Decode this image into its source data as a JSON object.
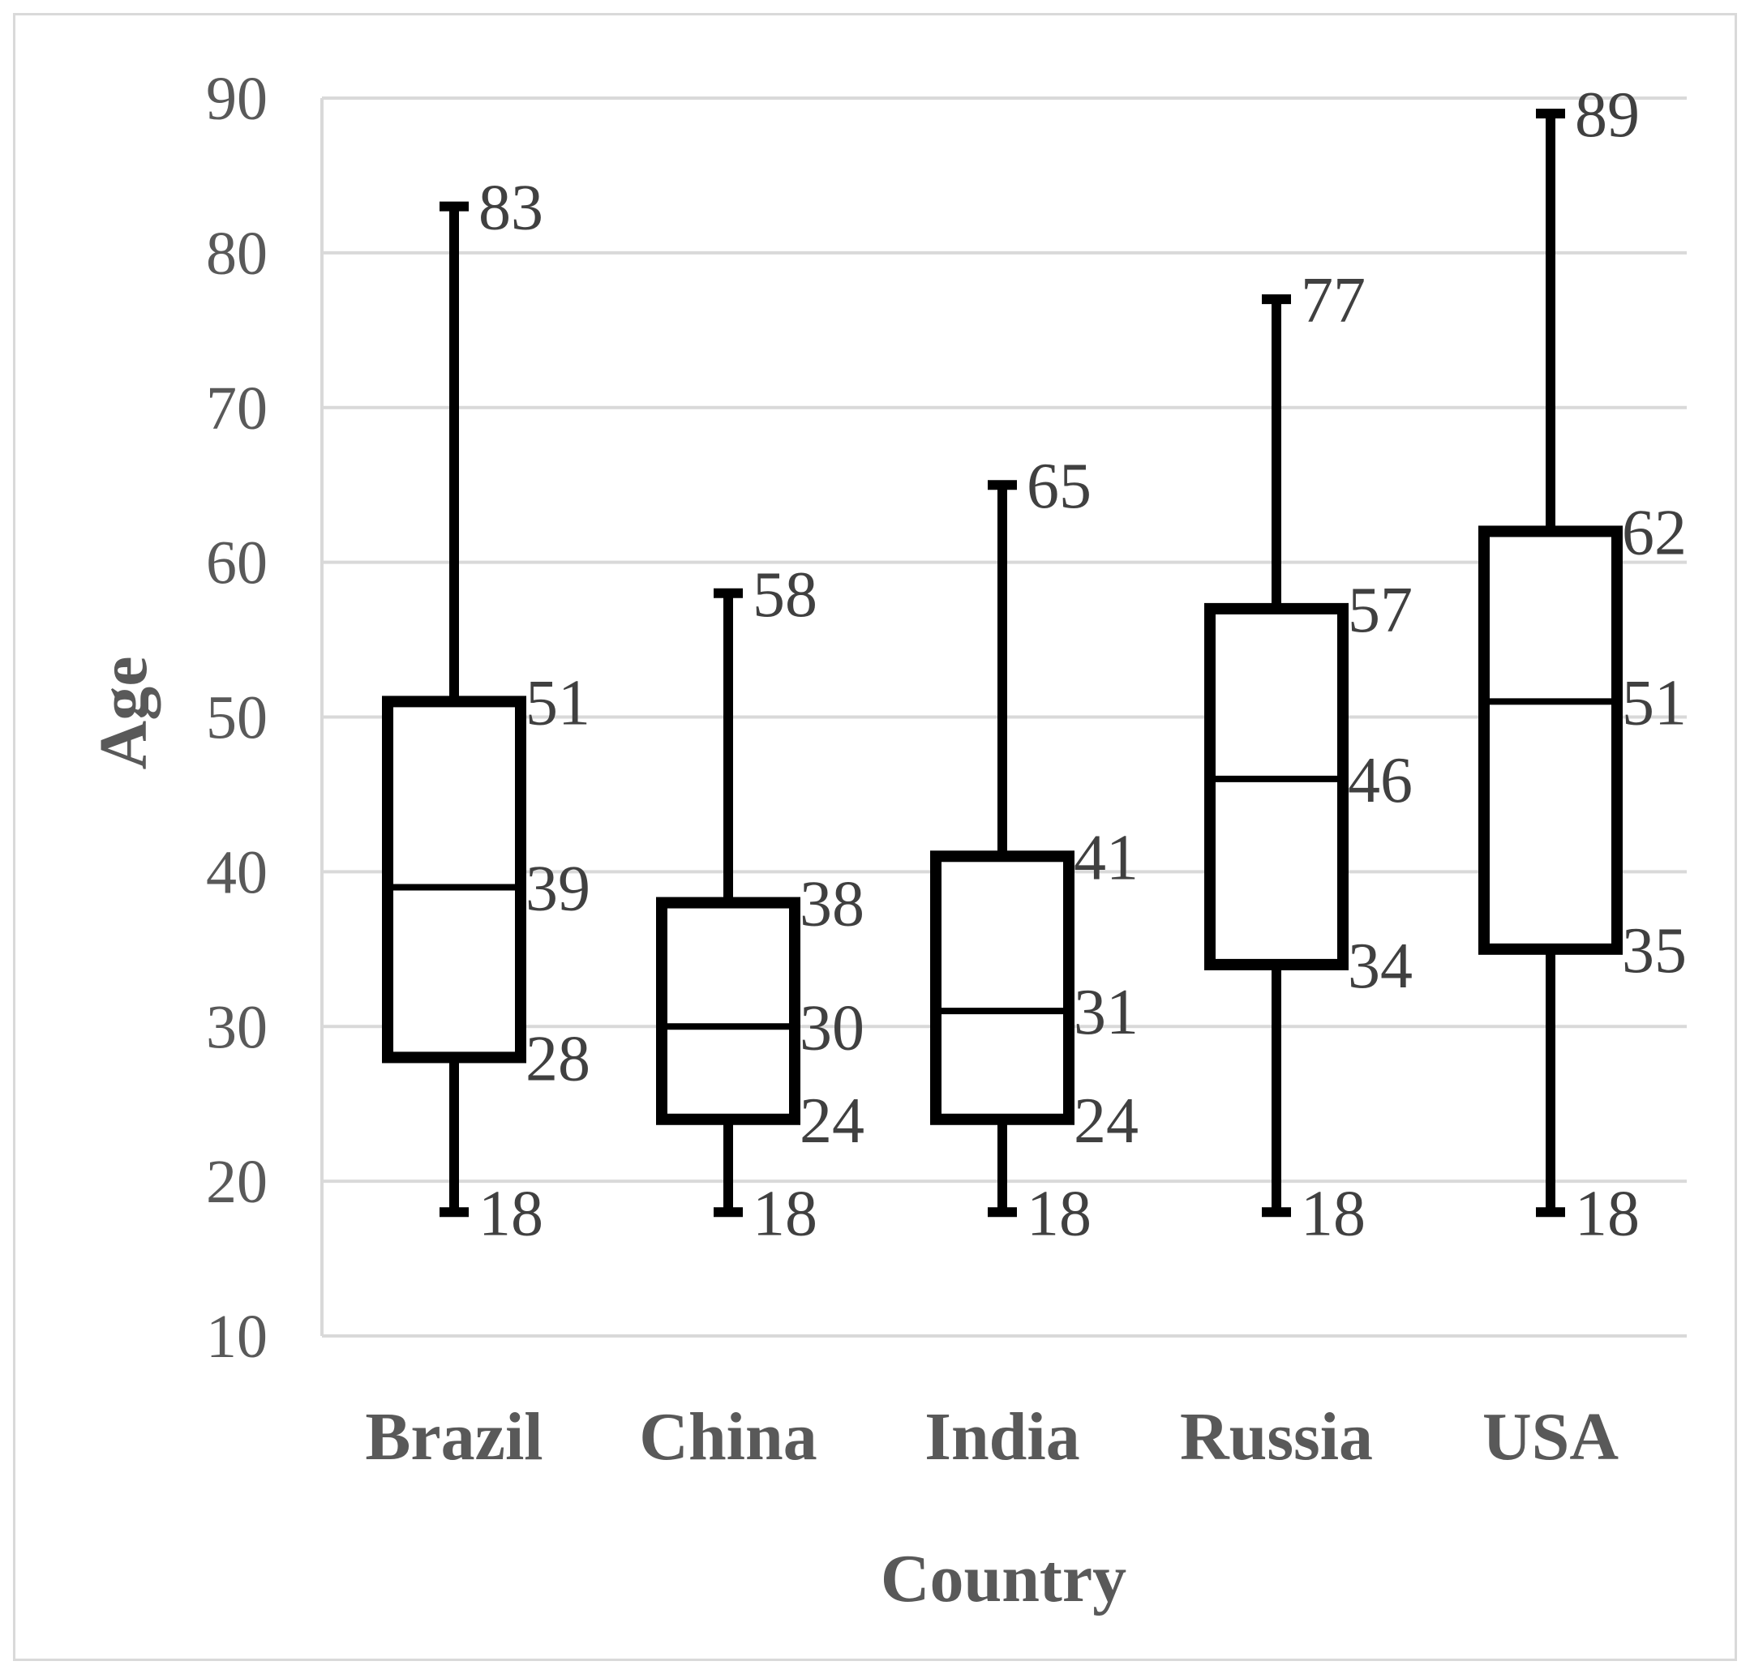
{
  "chart_data": {
    "type": "boxplot",
    "title": "",
    "xlabel": "Country",
    "ylabel": "Age",
    "ylim": [
      10,
      90
    ],
    "yticks": [
      10,
      20,
      30,
      40,
      50,
      60,
      70,
      80,
      90
    ],
    "grid": true,
    "legend": "none",
    "categories": [
      "Brazil",
      "China",
      "India",
      "Russia",
      "USA"
    ],
    "boxes": [
      {
        "category": "Brazil",
        "min": 18,
        "q1": 28,
        "median": 39,
        "q3": 51,
        "max": 83
      },
      {
        "category": "China",
        "min": 18,
        "q1": 24,
        "median": 30,
        "q3": 38,
        "max": 58
      },
      {
        "category": "India",
        "min": 18,
        "q1": 24,
        "median": 31,
        "q3": 41,
        "max": 65
      },
      {
        "category": "Russia",
        "min": 18,
        "q1": 34,
        "median": 46,
        "q3": 57,
        "max": 77
      },
      {
        "category": "USA",
        "min": 18,
        "q1": 35,
        "median": 51,
        "q3": 62,
        "max": 89
      }
    ]
  },
  "colors": {
    "box_stroke": "#000000",
    "grid": "#d9d9d9",
    "text": "#595959"
  }
}
